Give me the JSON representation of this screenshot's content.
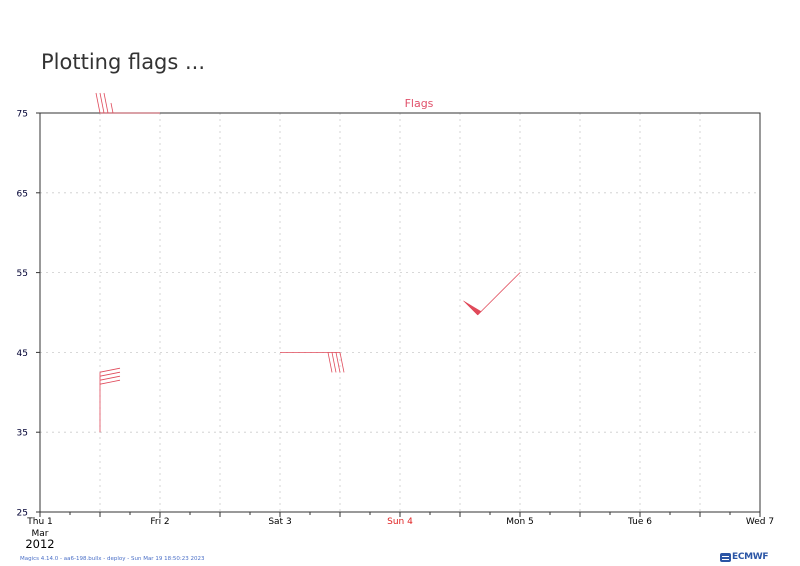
{
  "page": {
    "title": "Plotting flags ..."
  },
  "chart_data": {
    "type": "wind-flags",
    "title": "Flags",
    "title_color": "#e0506a",
    "flag_color": "#e04a5a",
    "ylim": [
      25,
      75
    ],
    "yticks": [
      "25",
      "35",
      "45",
      "55",
      "65",
      "75"
    ],
    "xlim": [
      "2012-03-01",
      "2012-03-07"
    ],
    "xticks": [
      {
        "day": 0,
        "label": "Thu 1",
        "color": "#000000"
      },
      {
        "day": 1,
        "label": "Fri 2",
        "color": "#000000"
      },
      {
        "day": 2,
        "label": "Sat 3",
        "color": "#000000"
      },
      {
        "day": 3,
        "label": "Sun 4",
        "color": "#e02020"
      },
      {
        "day": 4,
        "label": "Mon 5",
        "color": "#000000"
      },
      {
        "day": 5,
        "label": "Tue 6",
        "color": "#000000"
      },
      {
        "day": 6,
        "label": "Wed 7",
        "color": "#000000"
      }
    ],
    "x_sublabel_month": "Mar",
    "x_sublabel_year": "2012",
    "grid": true,
    "flags": [
      {
        "date": "2012-03-01T12:00",
        "y": 35,
        "direction_deg": 0,
        "speed": 40
      },
      {
        "date": "2012-03-03T00:00",
        "y": 45,
        "direction_deg": 90,
        "speed": 40
      },
      {
        "date": "2012-03-05T00:00",
        "y": 55,
        "direction_deg": 225,
        "speed": 50
      },
      {
        "date": "2012-03-02T00:00",
        "y": 75,
        "direction_deg": 270,
        "speed": 35
      }
    ]
  },
  "footer": {
    "text": "Magics 4.14.0 - aa6-198.bullx - deploy - Sun Mar 19 18:50:23 2023",
    "logo": "ECMWF"
  }
}
